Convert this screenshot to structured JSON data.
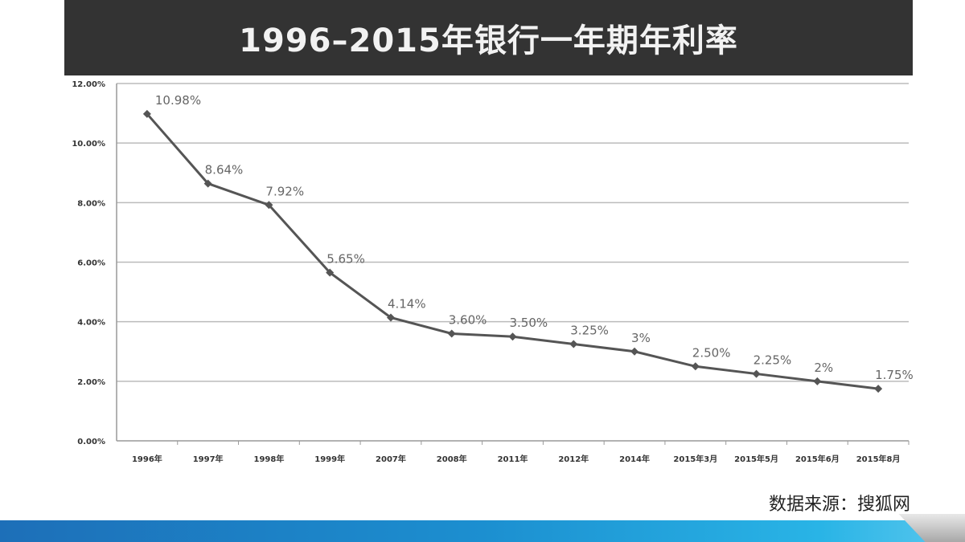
{
  "chart_data": {
    "type": "line",
    "title": "1996–2015年银行一年期年利率",
    "xlabel": "",
    "ylabel": "",
    "categories": [
      "1996年",
      "1997年",
      "1998年",
      "1999年",
      "2007年",
      "2008年",
      "2011年",
      "2012年",
      "2014年",
      "2015年3月",
      "2015年5月",
      "2015年6月",
      "2015年8月"
    ],
    "series": [
      {
        "name": "一年期年利率",
        "values": [
          10.98,
          8.64,
          7.92,
          5.65,
          4.14,
          3.6,
          3.5,
          3.25,
          3.0,
          2.5,
          2.25,
          2.0,
          1.75
        ]
      }
    ],
    "data_labels": [
      "10.98%",
      "8.64%",
      "7.92%",
      "5.65%",
      "4.14%",
      "3.60%",
      "3.50%",
      "3.25%",
      "3%",
      "2.50%",
      "2.25%",
      "2%",
      "1.75%"
    ],
    "ylim": [
      0,
      12
    ],
    "yticks": [
      "0.00%",
      "2.00%",
      "4.00%",
      "6.00%",
      "8.00%",
      "10.00%",
      "12.00%"
    ],
    "grid": true,
    "line_color": "#555555"
  },
  "source": "数据来源：搜狐网"
}
